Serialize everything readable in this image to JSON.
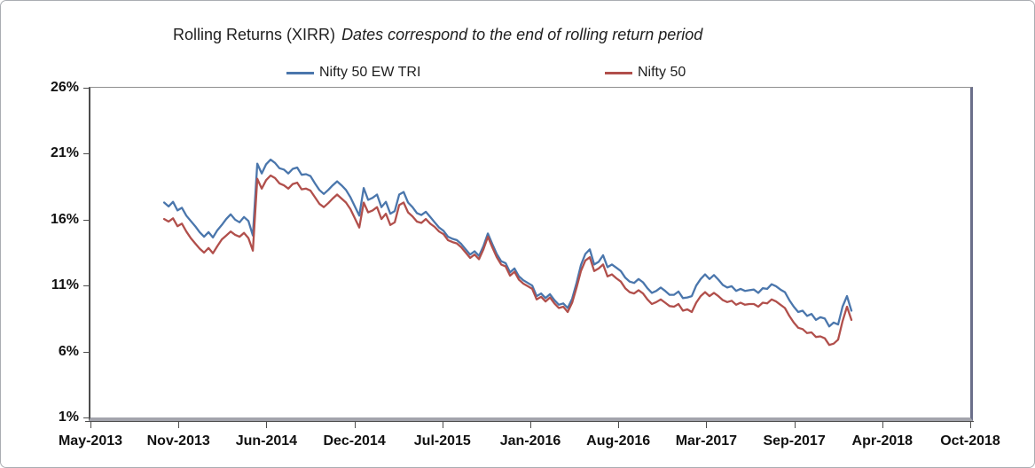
{
  "chart": {
    "title_regular": "Rolling Returns (XIRR)",
    "title_italic": "Dates correspond to the end of rolling return period",
    "legend": [
      {
        "label": "Nifty 50 EW TRI",
        "color": "#4a76ac"
      },
      {
        "label": "Nifty 50",
        "color": "#b14f4b"
      }
    ],
    "chart_data": {
      "type": "line",
      "grid": false,
      "legend_position": "top",
      "x_axis": {
        "kind": "category-time",
        "tick_labels": [
          "May-2013",
          "Nov-2013",
          "Jun-2014",
          "Dec-2014",
          "Jul-2015",
          "Jan-2016",
          "Aug-2016",
          "Mar-2017",
          "Sep-2017",
          "Apr-2018",
          "Oct-2018"
        ]
      },
      "y_axis": {
        "min": 1,
        "max": 26,
        "tick_step": 5,
        "ticks": [
          26,
          21,
          16,
          11,
          6,
          1
        ],
        "tick_labels": [
          "26%",
          "21%",
          "16%",
          "11%",
          "6%",
          "1%"
        ]
      },
      "sampling_note": "values sampled along x in axis-tick units; x_i = x_start_ticks + i*x_step_ticks where one tick unit = interval between x-axis labels",
      "x_start_ticks": 0.8375,
      "x_step_ticks": 0.0504,
      "series": [
        {
          "name": "Nifty 50 EW TRI",
          "color": "#4a76ac",
          "values": [
            17.3,
            17.0,
            17.35,
            16.7,
            16.9,
            16.3,
            15.9,
            15.5,
            15.05,
            14.7,
            15.05,
            14.65,
            15.2,
            15.6,
            16.05,
            16.4,
            16.0,
            15.8,
            16.2,
            15.9,
            14.8,
            20.25,
            19.5,
            20.2,
            20.55,
            20.3,
            19.9,
            19.8,
            19.5,
            19.85,
            19.95,
            19.4,
            19.45,
            19.3,
            18.75,
            18.25,
            17.95,
            18.25,
            18.6,
            18.9,
            18.6,
            18.25,
            17.7,
            17.0,
            16.3,
            18.4,
            17.5,
            17.65,
            17.9,
            16.95,
            17.35,
            16.45,
            16.65,
            17.9,
            18.1,
            17.3,
            16.95,
            16.5,
            16.35,
            16.6,
            16.2,
            15.8,
            15.4,
            15.15,
            14.7,
            14.55,
            14.45,
            14.15,
            13.75,
            13.35,
            13.6,
            13.25,
            14.0,
            14.95,
            14.15,
            13.4,
            12.85,
            12.7,
            12.0,
            12.3,
            11.7,
            11.4,
            11.2,
            11.0,
            10.2,
            10.4,
            10.05,
            10.35,
            9.9,
            9.55,
            9.65,
            9.3,
            10.0,
            11.2,
            12.55,
            13.4,
            13.75,
            12.6,
            12.8,
            13.3,
            12.4,
            12.6,
            12.35,
            12.1,
            11.6,
            11.3,
            11.2,
            11.5,
            11.25,
            10.8,
            10.45,
            10.6,
            10.85,
            10.6,
            10.3,
            10.3,
            10.55,
            10.05,
            10.1,
            10.2,
            11.0,
            11.5,
            11.85,
            11.5,
            11.8,
            11.45,
            11.05,
            10.85,
            10.95,
            10.6,
            10.75,
            10.6,
            10.65,
            10.7,
            10.45,
            10.8,
            10.75,
            11.1,
            10.95,
            10.7,
            10.5,
            9.9,
            9.4,
            9.0,
            9.1,
            8.7,
            8.85,
            8.4,
            8.6,
            8.5,
            7.9,
            8.2,
            8.05,
            9.4,
            10.2,
            9.1
          ]
        },
        {
          "name": "Nifty 50",
          "color": "#b14f4b",
          "values": [
            16.05,
            15.85,
            16.1,
            15.5,
            15.7,
            15.1,
            14.6,
            14.2,
            13.8,
            13.5,
            13.85,
            13.45,
            14.0,
            14.5,
            14.8,
            15.1,
            14.85,
            14.7,
            15.0,
            14.6,
            13.65,
            19.1,
            18.35,
            19.0,
            19.35,
            19.15,
            18.75,
            18.6,
            18.35,
            18.7,
            18.8,
            18.3,
            18.35,
            18.2,
            17.7,
            17.2,
            16.95,
            17.25,
            17.6,
            17.9,
            17.6,
            17.3,
            16.8,
            16.1,
            15.4,
            17.3,
            16.55,
            16.7,
            16.95,
            16.05,
            16.45,
            15.6,
            15.8,
            17.1,
            17.3,
            16.55,
            16.25,
            15.85,
            15.75,
            16.05,
            15.7,
            15.45,
            15.1,
            14.9,
            14.45,
            14.3,
            14.2,
            13.9,
            13.5,
            13.1,
            13.35,
            13.0,
            13.75,
            14.7,
            13.9,
            13.15,
            12.6,
            12.45,
            11.75,
            12.05,
            11.45,
            11.15,
            10.95,
            10.75,
            9.95,
            10.15,
            9.8,
            10.1,
            9.65,
            9.3,
            9.4,
            9.0,
            9.7,
            10.85,
            12.1,
            12.9,
            13.15,
            12.1,
            12.3,
            12.6,
            11.7,
            11.85,
            11.55,
            11.3,
            10.8,
            10.5,
            10.4,
            10.65,
            10.4,
            9.95,
            9.6,
            9.75,
            9.95,
            9.7,
            9.45,
            9.4,
            9.6,
            9.1,
            9.2,
            9.0,
            9.7,
            10.2,
            10.5,
            10.2,
            10.45,
            10.2,
            9.9,
            9.75,
            9.85,
            9.55,
            9.7,
            9.55,
            9.6,
            9.6,
            9.4,
            9.7,
            9.65,
            9.95,
            9.8,
            9.55,
            9.3,
            8.7,
            8.2,
            7.8,
            7.7,
            7.4,
            7.45,
            7.1,
            7.15,
            7.0,
            6.5,
            6.6,
            6.9,
            8.3,
            9.4,
            8.4
          ]
        }
      ]
    }
  }
}
